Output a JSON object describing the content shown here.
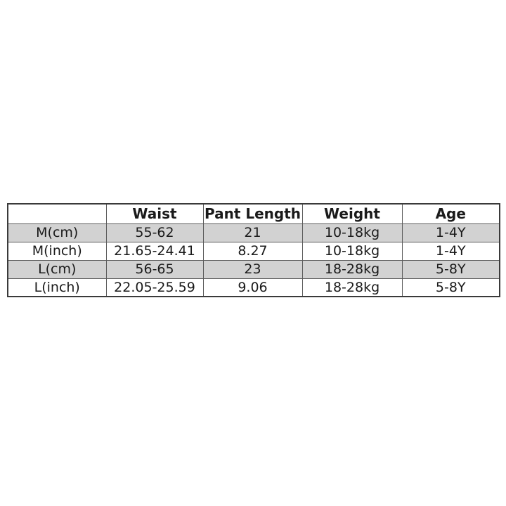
{
  "page": {
    "background_color": "#ffffff"
  },
  "size_chart": {
    "headers": [
      "",
      "Waist",
      "Pant Length",
      "Weight",
      "Age"
    ],
    "rows": [
      {
        "label": "M(cm)",
        "waist": "55-62",
        "pant_length": "21",
        "weight": "10-18kg",
        "age": "1-4Y",
        "shaded": true
      },
      {
        "label": "M(inch)",
        "waist": "21.65-24.41",
        "pant_length": "8.27",
        "weight": "10-18kg",
        "age": "1-4Y",
        "shaded": false
      },
      {
        "label": "L(cm)",
        "waist": "56-65",
        "pant_length": "23",
        "weight": "18-28kg",
        "age": "5-8Y",
        "shaded": true
      },
      {
        "label": "L(inch)",
        "waist": "22.05-25.59",
        "pant_length": "9.06",
        "weight": "18-28kg",
        "age": "5-8Y",
        "shaded": false
      }
    ],
    "colors": {
      "shaded_row": "#d2d2d2",
      "border_outer": "#3a3a3a",
      "border_inner": "#5a5a5a",
      "text": "#1a1a1a",
      "header_bg": "#ffffff"
    }
  },
  "chart_data": {
    "type": "table",
    "title": "",
    "columns": [
      "",
      "Waist",
      "Pant Length",
      "Weight",
      "Age"
    ],
    "rows": [
      [
        "M(cm)",
        "55-62",
        "21",
        "10-18kg",
        "1-4Y"
      ],
      [
        "M(inch)",
        "21.65-24.41",
        "8.27",
        "10-18kg",
        "1-4Y"
      ],
      [
        "L(cm)",
        "56-65",
        "23",
        "18-28kg",
        "5-8Y"
      ],
      [
        "L(inch)",
        "22.05-25.59",
        "9.06",
        "18-28kg",
        "5-8Y"
      ]
    ]
  }
}
